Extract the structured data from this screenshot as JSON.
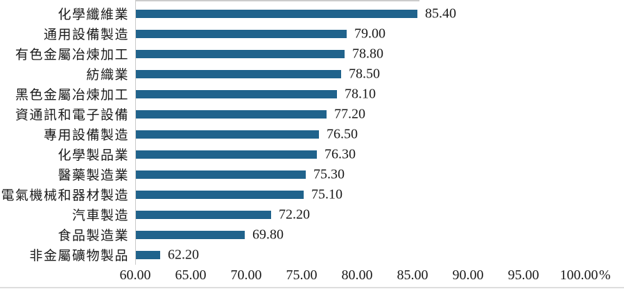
{
  "chart_data": {
    "type": "bar",
    "orientation": "horizontal",
    "title": "",
    "xlabel": "%",
    "ylabel": "",
    "xlim": [
      60,
      100
    ],
    "grid": false,
    "legend_position": "none",
    "bar_color": "#20638C",
    "axis_line_color": "#C9C9C9",
    "categories": [
      "化學纖維業",
      "通用設備製造",
      "有色金屬冶煉加工",
      "紡織業",
      "黑色金屬冶煉加工",
      "資通訊和電子設備",
      "專用設備製造",
      "化學製品業",
      "醫藥製造業",
      "電氣機械和器材製造",
      "汽車製造",
      "食品製造業",
      "非金屬礦物製品"
    ],
    "values": [
      85.4,
      79.0,
      78.8,
      78.5,
      78.1,
      77.2,
      76.5,
      76.3,
      75.3,
      75.1,
      72.2,
      69.8,
      62.2
    ],
    "value_labels": [
      "85.40",
      "79.00",
      "78.80",
      "78.50",
      "78.10",
      "77.20",
      "76.50",
      "76.30",
      "75.30",
      "75.10",
      "72.20",
      "69.80",
      "62.20"
    ],
    "x_ticks": [
      "60.00",
      "65.00",
      "70.00",
      "75.00",
      "80.00",
      "85.00",
      "90.00",
      "95.00",
      "100.00"
    ]
  }
}
